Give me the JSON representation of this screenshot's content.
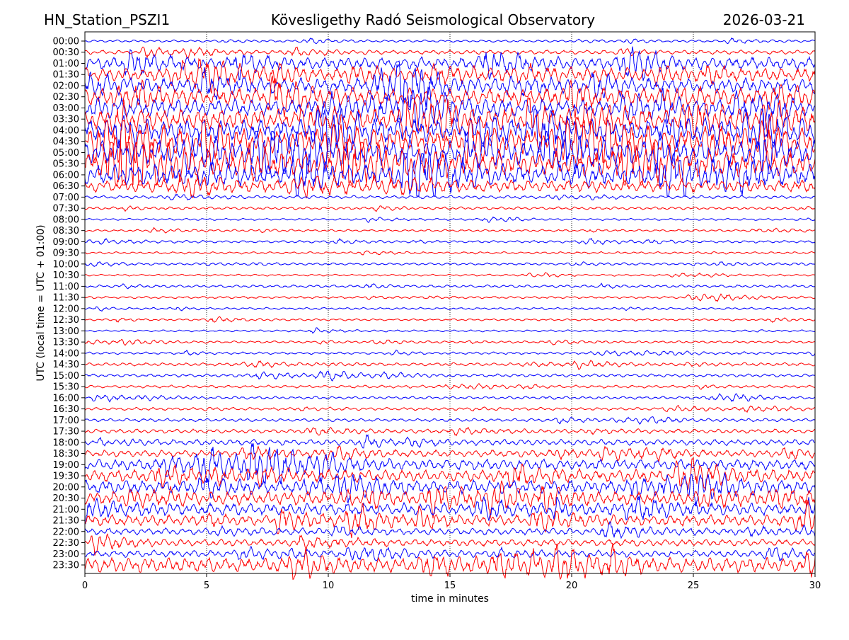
{
  "header": {
    "station": "HN_Station_PSZI1",
    "observatory": "Kövesligethy Radó Seismological Observatory",
    "date": "2026-03-21"
  },
  "chart_data": {
    "type": "line",
    "title": "Kövesligethy Radó Seismological Observatory",
    "xlabel": "time in minutes",
    "ylabel": "UTC (local time = UTC + 01:00)",
    "xlim": [
      0,
      30
    ],
    "x_ticks": [
      "0",
      "5",
      "10",
      "15",
      "20",
      "25",
      "30"
    ],
    "grid": "vertical dotted at each x tick",
    "series_colors": [
      "#0000ff",
      "#ff0000"
    ],
    "rows": [
      "00:00",
      "00:30",
      "01:00",
      "01:30",
      "02:00",
      "02:30",
      "03:00",
      "03:30",
      "04:00",
      "04:30",
      "05:00",
      "05:30",
      "06:00",
      "06:30",
      "07:00",
      "07:30",
      "08:00",
      "08:30",
      "09:00",
      "09:30",
      "10:00",
      "10:30",
      "11:00",
      "11:30",
      "12:00",
      "12:30",
      "13:00",
      "13:30",
      "14:00",
      "14:30",
      "15:00",
      "15:30",
      "16:00",
      "16:30",
      "17:00",
      "17:30",
      "18:00",
      "18:30",
      "19:00",
      "19:30",
      "20:00",
      "20:30",
      "21:00",
      "21:30",
      "22:00",
      "22:30",
      "23:00",
      "23:30"
    ],
    "activity_level": [
      0.05,
      0.15,
      0.4,
      0.45,
      0.5,
      0.6,
      0.6,
      0.7,
      0.8,
      0.9,
      0.9,
      0.9,
      0.7,
      0.4,
      0.1,
      0.08,
      0.04,
      0.05,
      0.06,
      0.05,
      0.05,
      0.03,
      0.08,
      0.05,
      0.05,
      0.04,
      0.03,
      0.05,
      0.06,
      0.1,
      0.1,
      0.08,
      0.08,
      0.08,
      0.1,
      0.15,
      0.25,
      0.3,
      0.35,
      0.4,
      0.45,
      0.45,
      0.4,
      0.35,
      0.3,
      0.3,
      0.3,
      0.5
    ]
  }
}
